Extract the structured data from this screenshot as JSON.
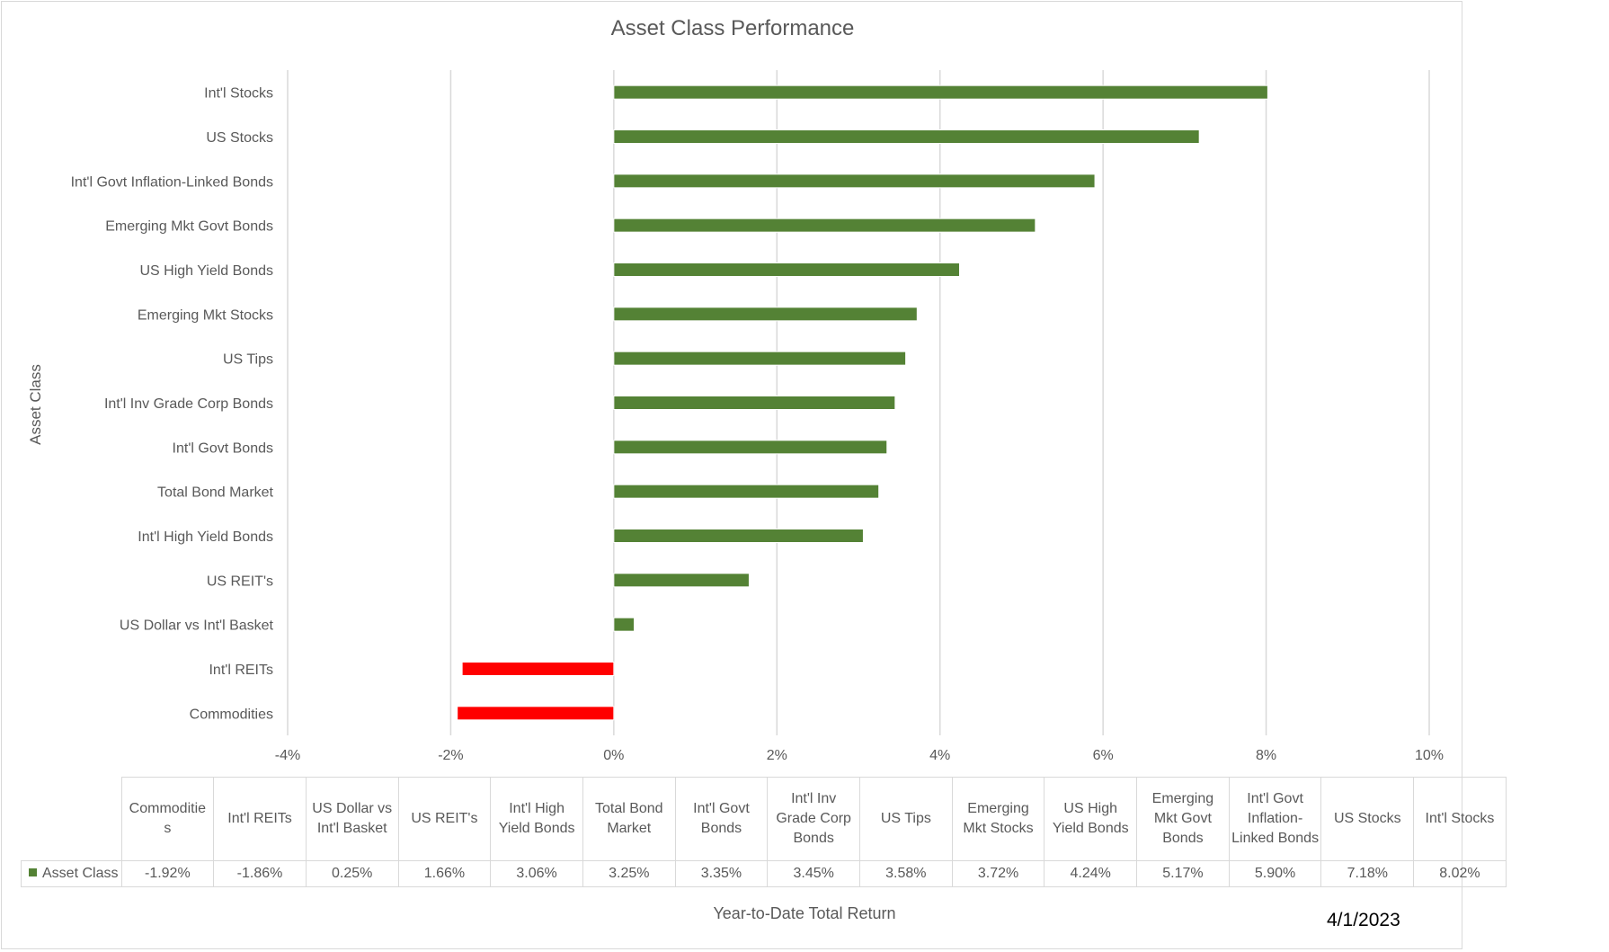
{
  "chart_data": {
    "type": "bar",
    "orientation": "horizontal",
    "title": "Asset Class Performance",
    "xlabel": "Year-to-Date Total Return",
    "ylabel": "Asset Class",
    "xlim": [
      -4,
      10
    ],
    "xticks": [
      -4,
      -2,
      0,
      2,
      4,
      6,
      8,
      10
    ],
    "xtick_labels": [
      "-4%",
      "-2%",
      "0%",
      "2%",
      "4%",
      "6%",
      "8%",
      "10%"
    ],
    "grid": true,
    "series": [
      {
        "name": "Asset Class",
        "categories": [
          "Commodities",
          "Int'l REITs",
          "US Dollar vs Int'l Basket",
          "US REIT's",
          "Int'l High Yield Bonds",
          "Total Bond Market",
          "Int'l Govt Bonds",
          "Int'l Inv Grade Corp Bonds",
          "US Tips",
          "Emerging Mkt Stocks",
          "US High Yield Bonds",
          "Emerging Mkt Govt Bonds",
          "Int'l Govt Inflation-Linked Bonds",
          "US Stocks",
          "Int'l Stocks"
        ],
        "values": [
          -1.92,
          -1.86,
          0.25,
          1.66,
          3.06,
          3.25,
          3.35,
          3.45,
          3.58,
          3.72,
          4.24,
          5.17,
          5.9,
          7.18,
          8.02
        ]
      }
    ],
    "colors": {
      "positive": "#548235",
      "negative": "#ff0000",
      "grid": "#d9d9d9"
    }
  },
  "table": {
    "headers": [
      "Commoditie s",
      "Int'l REITs",
      "US Dollar vs Int'l Basket",
      "US REIT's",
      "Int'l High Yield Bonds",
      "Total Bond Market",
      "Int'l Govt Bonds",
      "Int'l Inv Grade Corp Bonds",
      "US Tips",
      "Emerging Mkt Stocks",
      "US High Yield Bonds",
      "Emerging Mkt Govt Bonds",
      "Int'l Govt Inflation- Linked Bonds",
      "US Stocks",
      "Int'l Stocks"
    ],
    "series_label": "Asset Class",
    "values": [
      "-1.92%",
      "-1.86%",
      "0.25%",
      "1.66%",
      "3.06%",
      "3.25%",
      "3.35%",
      "3.45%",
      "3.58%",
      "3.72%",
      "4.24%",
      "5.17%",
      "5.90%",
      "7.18%",
      "8.02%"
    ]
  },
  "date": "4/1/2023"
}
